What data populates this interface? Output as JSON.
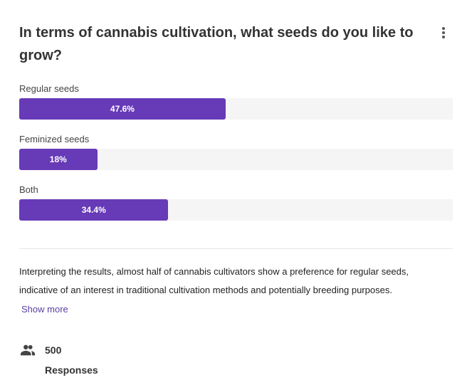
{
  "question": "In terms of cannabis cultivation, what seeds do you like to grow?",
  "chart_data": {
    "type": "bar",
    "orientation": "horizontal",
    "categories": [
      "Regular seeds",
      "Feminized seeds",
      "Both"
    ],
    "values": [
      47.6,
      18,
      34.4
    ],
    "data_labels": [
      "47.6%",
      "18%",
      "34.4%"
    ],
    "xlim": [
      0,
      100
    ],
    "bar_color": "#673ab7",
    "track_color": "#f5f5f5"
  },
  "description": "Interpreting the results, almost half of cannabis cultivators show a preference for regular seeds, indicative of an interest in traditional cultivation methods and potentially breeding purposes.",
  "show_more": "Show more",
  "responses": {
    "icon": "people-icon",
    "count": "500",
    "label": "Responses"
  }
}
